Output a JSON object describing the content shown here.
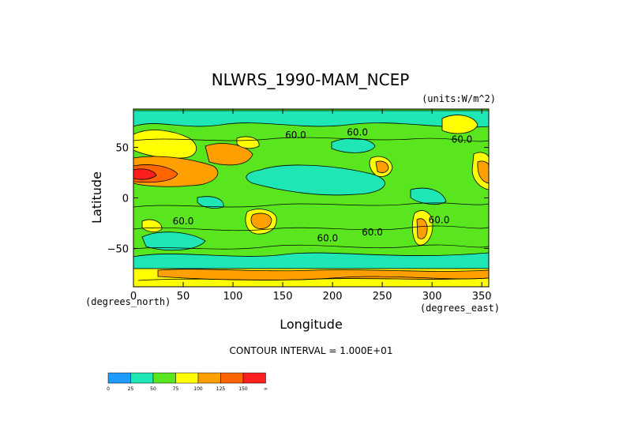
{
  "chart_data": {
    "type": "heatmap",
    "title": "NLWRS_1990-MAM_NCEP",
    "units": "(units:W/m^2)",
    "xlabel": "Longitude",
    "ylabel": "Latitude",
    "x_unit_label": "(degrees_east)",
    "y_unit_label": "(degrees_north)",
    "xlim": [
      0,
      357
    ],
    "ylim": [
      -88,
      88
    ],
    "x_ticks": [
      0,
      50,
      100,
      150,
      200,
      250,
      300,
      350
    ],
    "x_tick_labels": [
      "0",
      "50",
      "100",
      "150",
      "200",
      "250",
      "300",
      "350"
    ],
    "y_ticks": [
      50,
      0,
      -50
    ],
    "y_tick_labels": [
      "50",
      "0",
      "−50"
    ],
    "contour_interval_text": "CONTOUR INTERVAL = 1.000E+01",
    "contour_labels": [
      {
        "text": "60.0",
        "lon": 163,
        "lat": 62
      },
      {
        "text": "60.0",
        "lon": 225,
        "lat": 65
      },
      {
        "text": "60.0",
        "lon": 330,
        "lat": 58
      },
      {
        "text": "60.0",
        "lon": 50,
        "lat": -23
      },
      {
        "text": "60.0",
        "lon": 195,
        "lat": -40
      },
      {
        "text": "60.0",
        "lon": 240,
        "lat": -34
      },
      {
        "text": "60.0",
        "lon": 307,
        "lat": -22
      }
    ],
    "colorbar": {
      "colors": [
        "#1e9bff",
        "#1ee6b4",
        "#5ae61e",
        "#ffff00",
        "#ffa000",
        "#ff6400",
        "#ff1e1e"
      ],
      "labels": [
        "0",
        "25",
        "50",
        "75",
        "100",
        "125",
        "150",
        "∞"
      ]
    },
    "regions": {
      "background_value_color": "#5ae61e",
      "low_value_color": "#1ee6b4",
      "high_value_colors": [
        "#ffff00",
        "#ffa000",
        "#ff6400",
        "#ff1e1e"
      ]
    }
  }
}
